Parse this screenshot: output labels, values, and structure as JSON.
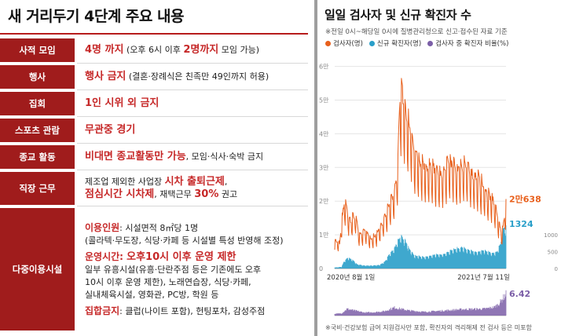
{
  "left_panel": {
    "title": "새 거리두기 4단계 주요 내용",
    "rows": [
      {
        "label": "사적 모임",
        "lines": [
          [
            {
              "t": "4명 까지",
              "s": "hl"
            },
            {
              "t": " (오후 6시 이후 ",
              "s": ""
            },
            {
              "t": "2명까지",
              "s": "hl"
            },
            {
              "t": " 모임 가능)",
              "s": ""
            }
          ]
        ]
      },
      {
        "label": "행사",
        "lines": [
          [
            {
              "t": "행사 금지",
              "s": "hl"
            },
            {
              "t": " (결혼·장례식은 친족만 49인까지 허용)",
              "s": ""
            }
          ]
        ]
      },
      {
        "label": "집회",
        "lines": [
          [
            {
              "t": "1인 시위 외 금지",
              "s": "hl"
            }
          ]
        ]
      },
      {
        "label": "스포츠 관람",
        "lines": [
          [
            {
              "t": "무관중 경기",
              "s": "hl"
            }
          ]
        ]
      },
      {
        "label": "종교 활동",
        "lines": [
          [
            {
              "t": "비대면 종교활동만 가능",
              "s": "hl"
            },
            {
              "t": ", 모임·식사·숙박 금지",
              "s": ""
            }
          ]
        ]
      },
      {
        "label": "직장 근무",
        "lines": [
          [
            {
              "t": "제조업 제외한 사업장 ",
              "s": ""
            },
            {
              "t": "시차 출퇴근제",
              "s": "hl"
            },
            {
              "t": ",",
              "s": ""
            }
          ],
          [
            {
              "t": "점심시간 시차제",
              "s": "hl"
            },
            {
              "t": ", 재택근무 ",
              "s": ""
            },
            {
              "t": "30%",
              "s": "hl"
            },
            {
              "t": " 권고",
              "s": ""
            }
          ]
        ]
      },
      {
        "label": "다중이용시설",
        "lines": [
          [
            {
              "t": "이용인원",
              "s": "hl-sm"
            },
            {
              "t": ": 시설면적 8㎡당 1명",
              "s": ""
            }
          ],
          [
            {
              "t": "(콜라텍·무도장, 식당·카페 등 시설별 특성 반영해 조정)",
              "s": ""
            }
          ],
          [
            {
              "t": "",
              "s": "gap"
            }
          ],
          [
            {
              "t": "운영시간: ",
              "s": "hl-sm"
            },
            {
              "t": "오후10시 이후 운영 제한",
              "s": "hl"
            }
          ],
          [
            {
              "t": "일부 유흥시설(유흥·단란주점 등은 기존에도 오후",
              "s": ""
            }
          ],
          [
            {
              "t": "10시 이후 운영 제한), 노래연습장, 식당·카페,",
              "s": ""
            }
          ],
          [
            {
              "t": "실내체육시설, 영화관, PC방, 학원 등",
              "s": ""
            }
          ],
          [
            {
              "t": "",
              "s": "gap"
            }
          ],
          [
            {
              "t": "집합금지",
              "s": "hl-sm"
            },
            {
              "t": ": 클럽(나이트 포함), 헌팅포차, 감성주점",
              "s": ""
            }
          ]
        ]
      }
    ]
  },
  "right_panel": {
    "title": "일일 검사자 및 신규 확진자 수",
    "note": "※전일 0시~해당일 0시에 질병관리청으로 신고·접수된 자료 기준",
    "legend": [
      {
        "label": "검사자(명)",
        "color": "#e8601c"
      },
      {
        "label": "신규 확진자(명)",
        "color": "#2a9fc9"
      },
      {
        "label": "검사자 중 확진자 비율(%)",
        "color": "#7b5ea7"
      }
    ],
    "footnote": "※국비·건강보험 급여 지원검사만 포함, 확진자의 격리해제 전 검사 등은 미포함"
  },
  "chart_data": {
    "type": "line",
    "x_start_label": "2020년 8월 1일",
    "x_end_label": "2021년 7월 11일",
    "num_days": 345,
    "left_axis": {
      "ticks": [
        {
          "v": 0,
          "label": "0"
        },
        {
          "v": 10000,
          "label": "1만"
        },
        {
          "v": 20000,
          "label": "2만"
        },
        {
          "v": 30000,
          "label": "3만"
        },
        {
          "v": 40000,
          "label": "4만"
        },
        {
          "v": 50000,
          "label": "5만"
        },
        {
          "v": 60000,
          "label": "6만"
        }
      ],
      "ylim": [
        0,
        62000
      ]
    },
    "right_axis": {
      "ticks": [
        {
          "v": 0,
          "label": "0"
        },
        {
          "v": 500,
          "label": "500"
        },
        {
          "v": 1000,
          "label": "1000"
        }
      ],
      "ylim": [
        0,
        6200
      ]
    },
    "series": [
      {
        "name": "검사자(명)",
        "color": "#e8601c",
        "axis": "left",
        "final_label": "2만638",
        "final_value": 20638,
        "keypoints": [
          [
            0,
            9000
          ],
          [
            10,
            8000
          ],
          [
            14,
            15000
          ],
          [
            20,
            21000
          ],
          [
            30,
            15000
          ],
          [
            42,
            17000
          ],
          [
            50,
            10500
          ],
          [
            62,
            12000
          ],
          [
            72,
            9500
          ],
          [
            85,
            11000
          ],
          [
            100,
            16000
          ],
          [
            110,
            20000
          ],
          [
            120,
            24000
          ],
          [
            126,
            30000
          ],
          [
            130,
            53000
          ],
          [
            136,
            55000
          ],
          [
            142,
            49000
          ],
          [
            150,
            45000
          ],
          [
            160,
            37000
          ],
          [
            172,
            34000
          ],
          [
            185,
            32000
          ],
          [
            200,
            31000
          ],
          [
            215,
            29000
          ],
          [
            230,
            34000
          ],
          [
            245,
            31000
          ],
          [
            260,
            33000
          ],
          [
            275,
            30000
          ],
          [
            290,
            28000
          ],
          [
            305,
            24000
          ],
          [
            320,
            21000
          ],
          [
            335,
            11000
          ],
          [
            340,
            15000
          ],
          [
            344,
            20638
          ]
        ]
      },
      {
        "name": "신규 확진자(명)",
        "color": "#2a9fc9",
        "axis": "right",
        "final_label": "1324",
        "final_value": 1324,
        "keypoints": [
          [
            0,
            30
          ],
          [
            14,
            50
          ],
          [
            18,
            200
          ],
          [
            26,
            330
          ],
          [
            35,
            280
          ],
          [
            45,
            130
          ],
          [
            60,
            90
          ],
          [
            75,
            90
          ],
          [
            90,
            110
          ],
          [
            100,
            200
          ],
          [
            110,
            450
          ],
          [
            120,
            620
          ],
          [
            128,
            900
          ],
          [
            133,
            1000
          ],
          [
            140,
            900
          ],
          [
            150,
            600
          ],
          [
            160,
            400
          ],
          [
            180,
            350
          ],
          [
            200,
            420
          ],
          [
            220,
            450
          ],
          [
            240,
            600
          ],
          [
            255,
            650
          ],
          [
            270,
            560
          ],
          [
            285,
            500
          ],
          [
            300,
            560
          ],
          [
            315,
            480
          ],
          [
            325,
            500
          ],
          [
            333,
            760
          ],
          [
            338,
            1200
          ],
          [
            344,
            1324
          ]
        ]
      },
      {
        "name": "검사자 중 확진자 비율(%)",
        "color": "#7b5ea7",
        "axis": "ratio",
        "final_label": "6.42",
        "final_value": 6.42,
        "keypoints": [
          [
            0,
            0.5
          ],
          [
            14,
            0.7
          ],
          [
            25,
            2.0
          ],
          [
            40,
            1.5
          ],
          [
            60,
            0.9
          ],
          [
            80,
            1.0
          ],
          [
            100,
            1.3
          ],
          [
            120,
            2.4
          ],
          [
            135,
            1.9
          ],
          [
            150,
            1.5
          ],
          [
            180,
            1.1
          ],
          [
            220,
            1.5
          ],
          [
            260,
            1.9
          ],
          [
            300,
            2.0
          ],
          [
            320,
            2.5
          ],
          [
            330,
            3.5
          ],
          [
            344,
            6.42
          ]
        ]
      }
    ]
  }
}
